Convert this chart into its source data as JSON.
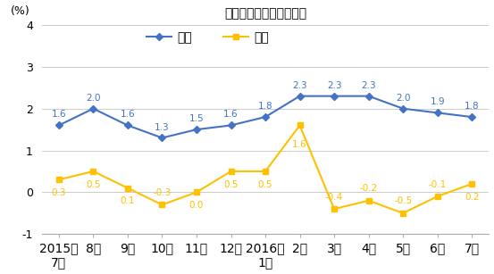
{
  "title": "全国居民消费价格涨跌幅",
  "ylabel": "(%)",
  "x_labels": [
    "2015年\n7月",
    "8月",
    "9月",
    "10月",
    "11月",
    "12月",
    "2016年\n1月",
    "2月",
    "3月",
    "4月",
    "5月",
    "6月",
    "7月"
  ],
  "tongbi": [
    1.6,
    2.0,
    1.6,
    1.3,
    1.5,
    1.6,
    1.8,
    2.3,
    2.3,
    2.3,
    2.0,
    1.9,
    1.8
  ],
  "huanbi": [
    0.3,
    0.5,
    0.1,
    -0.3,
    0.0,
    0.5,
    0.5,
    1.6,
    -0.4,
    -0.2,
    -0.5,
    -0.1,
    0.2
  ],
  "tongbi_color": "#4472C4",
  "huanbi_color": "#FFC000",
  "ylim": [
    -1,
    4
  ],
  "yticks": [
    -1,
    0,
    1,
    2,
    3,
    4
  ],
  "legend_tongbi": "同比",
  "legend_huanbi": "环比",
  "bg_color": "#ffffff",
  "plot_bg_color": "#ffffff",
  "grid_color": "#cccccc",
  "annotation_fontsize": 7.5,
  "title_fontsize": 12
}
